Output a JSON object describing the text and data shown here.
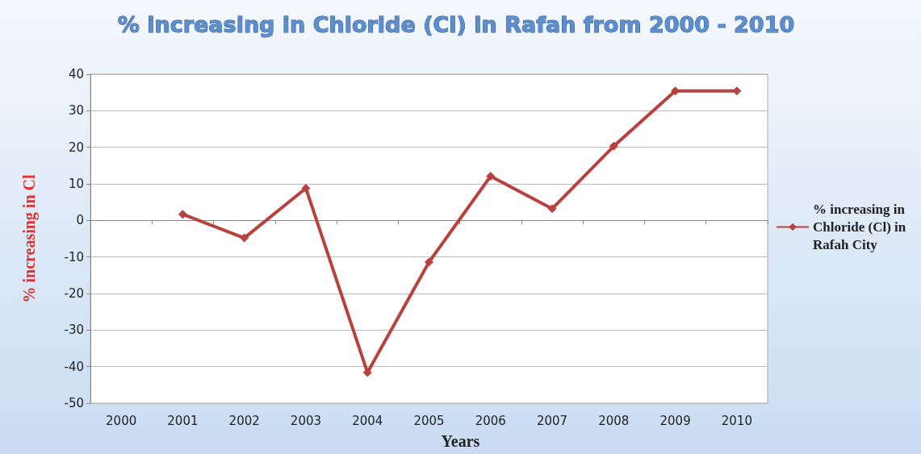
{
  "chart_data": {
    "type": "line",
    "title": "% increasing in Chloride (Cl) in Rafah from 2000 - 2010",
    "xlabel": "Years",
    "ylabel": "% increasing in Cl",
    "categories": [
      "2000",
      "2001",
      "2002",
      "2003",
      "2004",
      "2005",
      "2006",
      "2007",
      "2008",
      "2009",
      "2010"
    ],
    "series": [
      {
        "name": "% increasing in Chloride (Cl) in Rafah City",
        "color": "#b9413e",
        "values": [
          null,
          1.7,
          -4.8,
          8.8,
          -41.6,
          -11.4,
          12.1,
          3.2,
          20.3,
          35.4,
          35.4
        ]
      }
    ],
    "ylim": [
      -50,
      40
    ],
    "yticks": [
      -50,
      -40,
      -30,
      -20,
      -10,
      0,
      10,
      20,
      30,
      40
    ],
    "grid": "y",
    "legend": "right",
    "marker": "diamond",
    "line_style": "solid"
  }
}
